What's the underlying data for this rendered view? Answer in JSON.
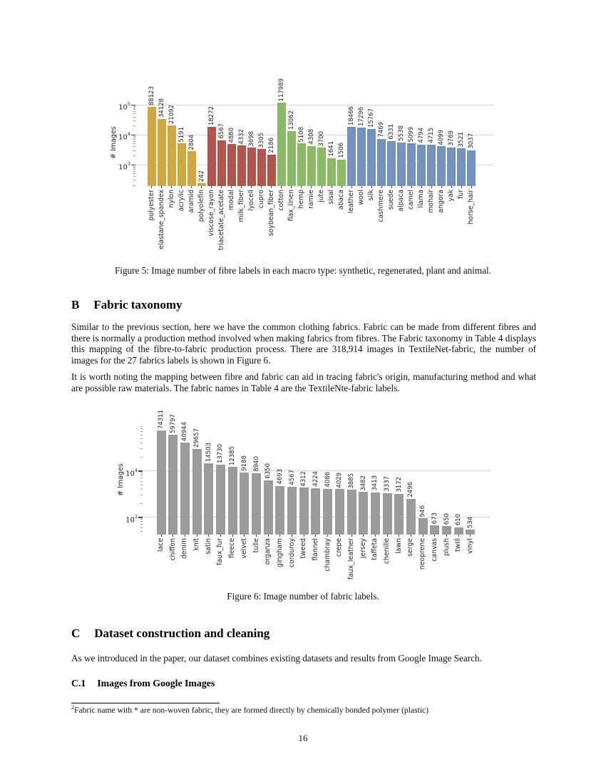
{
  "figure5": {
    "caption": "Figure 5: Image number of fibre labels in each macro type: synthetic, regenerated, plant and animal."
  },
  "section_b": {
    "number": "B",
    "title": "Fabric taxonomy",
    "paragraph1": "Similar to the previous section, here we have the common clothing fabrics. Fabric can be made from different fibres and there is normally a production method involved when making fabrics from fibres. The Fabric taxonomy in Table 4 displays this mapping of the fibre-to-fabric production process. There are 318,914 images in TextileNet-fabric, the number of images for the 27 fabrics labels is shown in Figure 6.",
    "paragraph2": "It is worth noting the mapping between fibre and fabric can aid in tracing fabric's origin, manufacturing method and what are possible raw materials. The fabric names in Table 4 are the TextileNte-fabric labels."
  },
  "figure6": {
    "caption": "Figure 6: Image number of fabric labels."
  },
  "section_c": {
    "number": "C",
    "title": "Dataset construction and cleaning",
    "paragraph1": "As we introduced in the paper, our dataset combines existing datasets and results from Google Image Search."
  },
  "subsection_c1": {
    "number": "C.1",
    "title": "Images from Google Images"
  },
  "footnote": {
    "marker": "2",
    "text": "Fabric name with * are non-woven fabric, they are formed directly by chemically bonded polymer (plastic)"
  },
  "page_number": "16",
  "chart_data": [
    {
      "figure": "Figure 5",
      "type": "bar",
      "yscale": "log",
      "ylabel": "# Images",
      "grid": true,
      "ytick_exponents": [
        3,
        4,
        5
      ],
      "ylim": [
        193,
        158000
      ],
      "ylim_exp": [
        2.286,
        5.2
      ],
      "categories": [
        "polyester",
        "elastane_spandex",
        "nylon",
        "acrylic",
        "aramid",
        "polyolefin",
        "viscose_rayon",
        "triacetate_acetate",
        "modal",
        "milk_fiber",
        "lyocell",
        "cupro",
        "soybean_fiber",
        "cotton",
        "flax_linen",
        "hemp",
        "ramie",
        "jute",
        "sisal",
        "abaca",
        "leather",
        "wool",
        "silk",
        "cashmere",
        "suede",
        "alpaca",
        "camel",
        "llama",
        "mohair",
        "angora",
        "yak",
        "fur",
        "horse_hair"
      ],
      "values": [
        88123,
        34128,
        21092,
        5191,
        2804,
        242,
        18272,
        6567,
        4880,
        4332,
        3698,
        3305,
        2186,
        117989,
        13062,
        5108,
        4308,
        3700,
        1641,
        1506,
        18466,
        17296,
        15767,
        7469,
        6331,
        5538,
        5099,
        4794,
        4715,
        4099,
        3769,
        3521,
        3037
      ],
      "groups": [
        {
          "name": "synthetic",
          "color": "#d3a73f",
          "count": 6
        },
        {
          "name": "regenerated",
          "color": "#b5534d",
          "count": 7
        },
        {
          "name": "plant",
          "color": "#8aba63",
          "count": 7
        },
        {
          "name": "animal",
          "color": "#7392c2",
          "count": 13
        }
      ]
    },
    {
      "figure": "Figure 6",
      "type": "bar",
      "yscale": "log",
      "ylabel": "# Images",
      "grid": true,
      "ytick_exponents": [
        3,
        4
      ],
      "ylim": [
        423,
        95500
      ],
      "ylim_exp": [
        2.626,
        4.98
      ],
      "bar_color": "#9b9b9b",
      "categories": [
        "lace",
        "chiffon",
        "denim",
        "knit",
        "satin",
        "faux_fur",
        "fleece",
        "velvet",
        "tulle",
        "organza",
        "gingham",
        "corduroy",
        "tweed",
        "flannel",
        "chambray",
        "crepe",
        "faux_leather",
        "jersey",
        "taffeta",
        "chenille",
        "lawn",
        "serge",
        "neoprene",
        "canvas",
        "plush",
        "twill",
        "vinyl"
      ],
      "values": [
        74311,
        59797,
        40944,
        29657,
        14503,
        13730,
        12385,
        9188,
        8940,
        6350,
        4693,
        4567,
        4312,
        4224,
        4086,
        4029,
        3885,
        3482,
        3413,
        3337,
        3172,
        2496,
        946,
        673,
        650,
        610,
        534
      ]
    }
  ]
}
